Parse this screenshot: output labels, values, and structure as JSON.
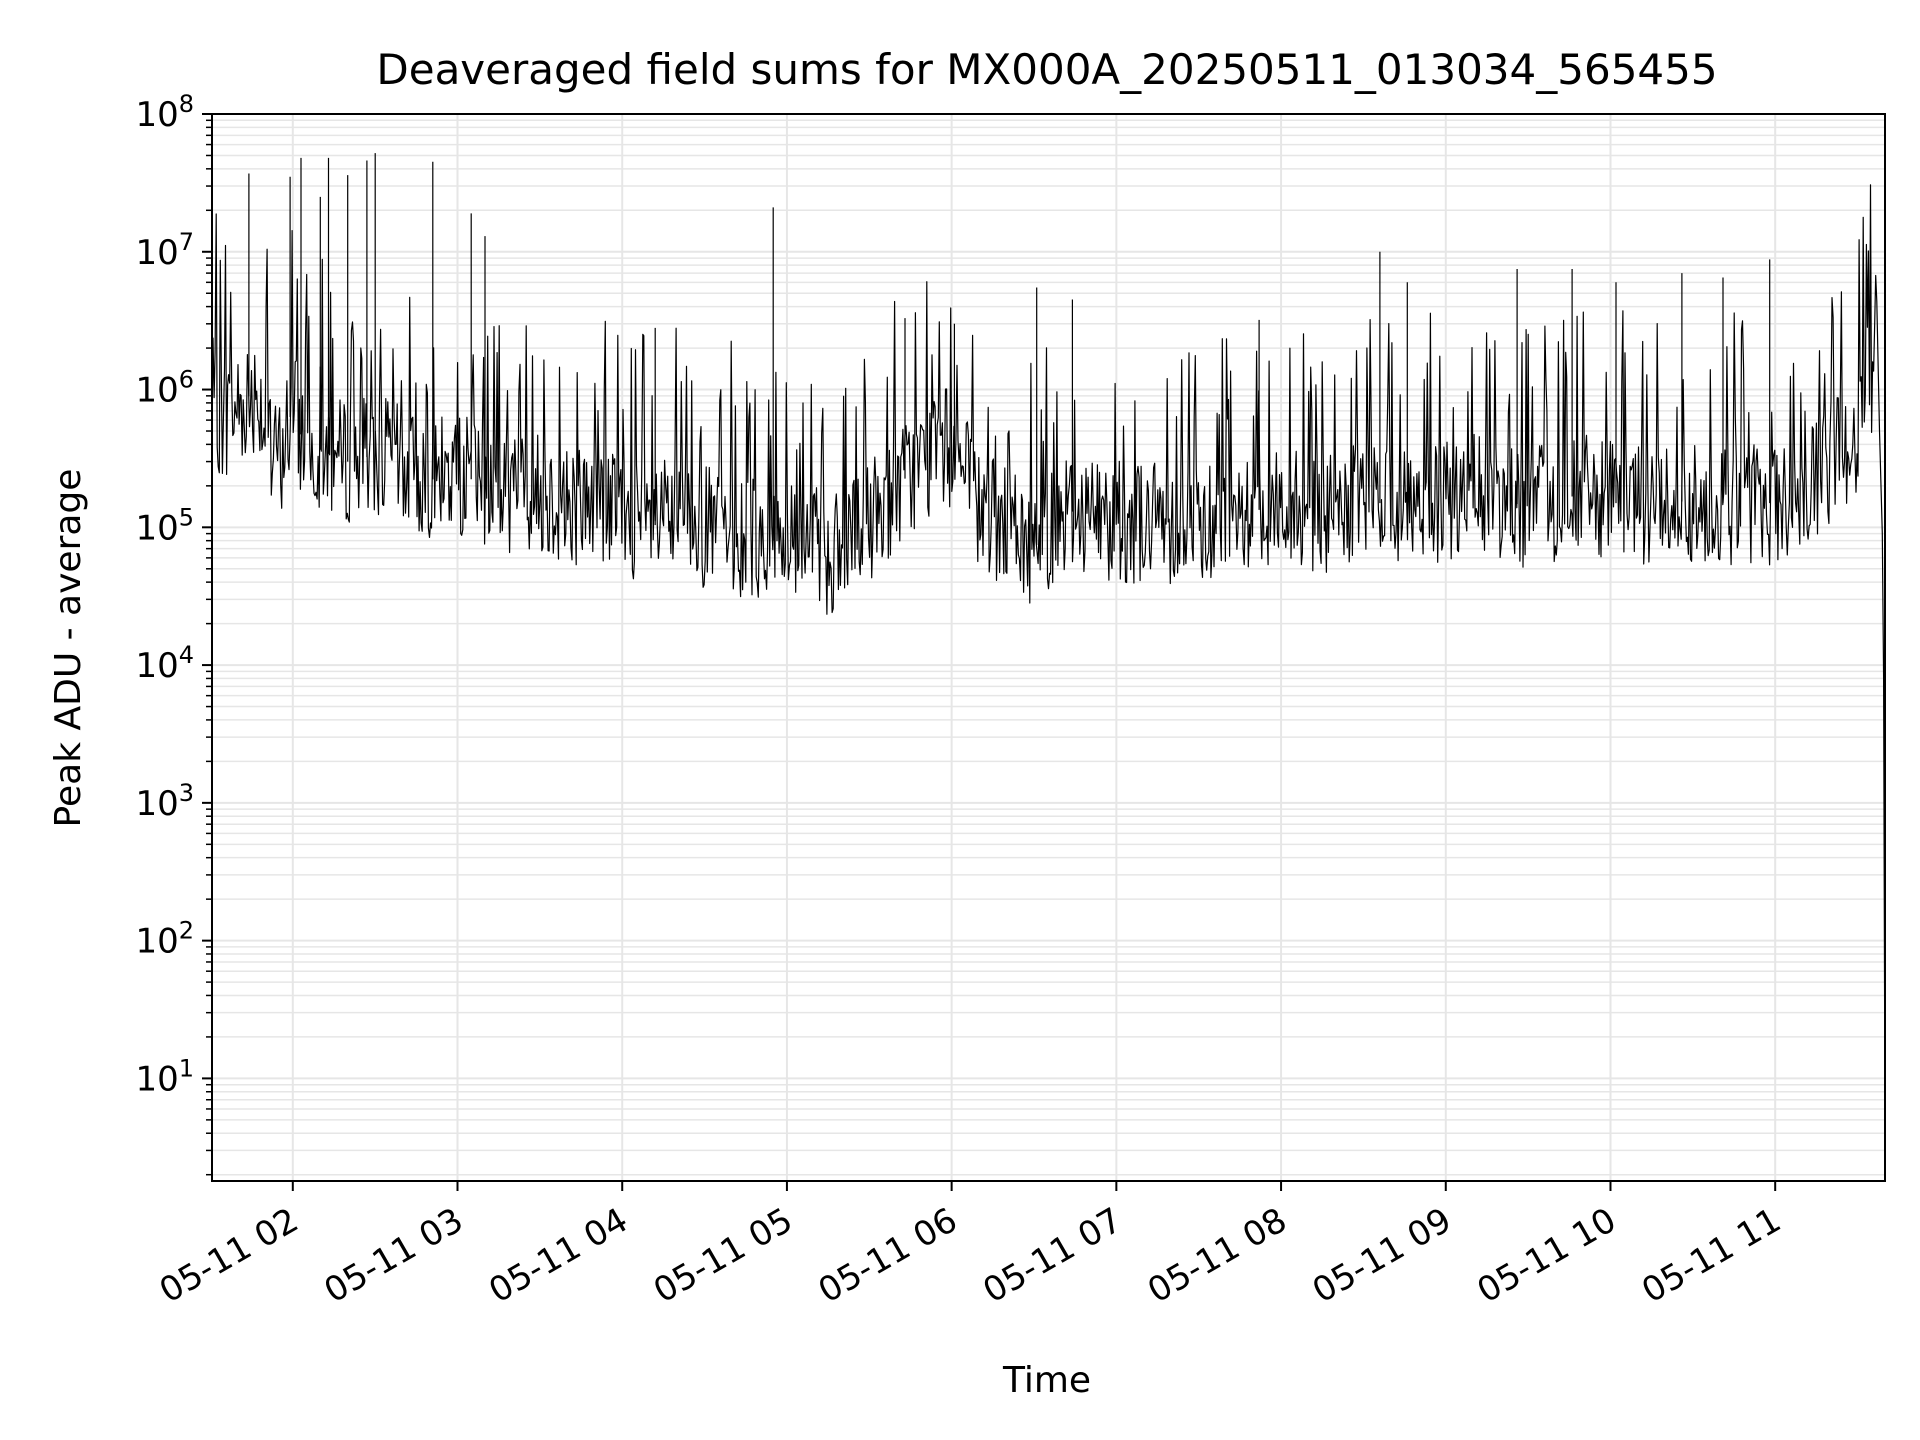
{
  "chart_data": {
    "type": "line",
    "title": "Deaveraged field sums for MX000A_20250511_013034_565455",
    "xlabel": "Time",
    "ylabel": "Peak ADU - average",
    "xscale": "time",
    "yscale": "log",
    "xlim": [
      "2025-05-11 01:30:34",
      "2025-05-11 11:40:00"
    ],
    "ylim": [
      1.8,
      100000000
    ],
    "grid": true,
    "legend": "none",
    "x_tick_labels": [
      "05-11 02",
      "05-11 03",
      "05-11 04",
      "05-11 05",
      "05-11 06",
      "05-11 07",
      "05-11 08",
      "05-11 09",
      "05-11 10",
      "05-11 11"
    ],
    "y_tick_labels": [
      {
        "base": "10",
        "exp": "1",
        "value": 10
      },
      {
        "base": "10",
        "exp": "2",
        "value": 100
      },
      {
        "base": "10",
        "exp": "3",
        "value": 1000
      },
      {
        "base": "10",
        "exp": "4",
        "value": 10000
      },
      {
        "base": "10",
        "exp": "5",
        "value": 100000
      },
      {
        "base": "10",
        "exp": "6",
        "value": 1000000
      },
      {
        "base": "10",
        "exp": "7",
        "value": 10000000
      },
      {
        "base": "10",
        "exp": "8",
        "value": 100000000
      }
    ],
    "line_color": "#000000",
    "grid_color": "#e6e6e6",
    "series": [
      {
        "x": [
          "2025-05-11 01:30:34",
          "2025-05-11 01:34:00",
          "2025-05-11 01:38:00",
          "2025-05-11 01:42:00",
          "2025-05-11 01:46:00",
          "2025-05-11 01:48:00",
          "2025-05-11 01:50:00",
          "2025-05-11 01:52:00",
          "2025-05-11 01:56:00",
          "2025-05-11 01:58:00",
          "2025-05-11 02:00:00",
          "2025-05-11 02:02:00",
          "2025-05-11 02:06:00",
          "2025-05-11 02:12:00",
          "2025-05-11 02:18:00",
          "2025-05-11 02:24:00",
          "2025-05-11 02:30:00",
          "2025-05-11 02:36:00",
          "2025-05-11 02:42:00",
          "2025-05-11 02:50:00",
          "2025-05-11 03:00:00",
          "2025-05-11 03:10:00",
          "2025-05-11 03:20:00",
          "2025-05-11 03:30:00",
          "2025-05-11 03:40:00",
          "2025-05-11 03:50:00",
          "2025-05-11 04:00:00",
          "2025-05-11 04:10:00",
          "2025-05-11 04:20:00",
          "2025-05-11 04:30:00",
          "2025-05-11 04:40:00",
          "2025-05-11 04:50:00",
          "2025-05-11 05:00:00",
          "2025-05-11 05:10:00",
          "2025-05-11 05:20:00",
          "2025-05-11 05:30:00",
          "2025-05-11 05:40:00",
          "2025-05-11 05:50:00",
          "2025-05-11 06:00:00",
          "2025-05-11 06:10:00",
          "2025-05-11 06:20:00",
          "2025-05-11 06:30:00",
          "2025-05-11 06:40:00",
          "2025-05-11 06:50:00",
          "2025-05-11 07:00:00",
          "2025-05-11 07:10:00",
          "2025-05-11 07:20:00",
          "2025-05-11 07:30:00",
          "2025-05-11 07:40:00",
          "2025-05-11 07:50:00",
          "2025-05-11 08:00:00",
          "2025-05-11 08:10:00",
          "2025-05-11 08:20:00",
          "2025-05-11 08:30:00",
          "2025-05-11 08:40:00",
          "2025-05-11 08:50:00",
          "2025-05-11 09:00:00",
          "2025-05-11 09:10:00",
          "2025-05-11 09:20:00",
          "2025-05-11 09:30:00",
          "2025-05-11 09:40:00",
          "2025-05-11 09:50:00",
          "2025-05-11 10:00:00",
          "2025-05-11 10:10:00",
          "2025-05-11 10:20:00",
          "2025-05-11 10:30:00",
          "2025-05-11 10:40:00",
          "2025-05-11 10:50:00",
          "2025-05-11 11:00:00",
          "2025-05-11 11:10:00",
          "2025-05-11 11:20:00",
          "2025-05-11 11:26:00",
          "2025-05-11 11:30:00",
          "2025-05-11 11:32:00",
          "2025-05-11 11:34:00",
          "2025-05-11 11:36:00",
          "2025-05-11 11:38:00",
          "2025-05-11 11:39:00",
          "2025-05-11 11:39:30",
          "2025-05-11 11:40:00"
        ],
        "y": [
          900000,
          600000,
          700000,
          800000,
          1000000,
          900000,
          500000,
          300000,
          350000,
          500000,
          800000,
          500000,
          400000,
          350000,
          300000,
          300000,
          350000,
          300000,
          250000,
          220000,
          250000,
          200000,
          180000,
          180000,
          150000,
          150000,
          130000,
          100000,
          120000,
          100000,
          90000,
          80000,
          80000,
          70000,
          60000,
          110000,
          200000,
          300000,
          400000,
          130000,
          100000,
          70000,
          130000,
          130000,
          110000,
          110000,
          110000,
          110000,
          120000,
          130000,
          150000,
          130000,
          120000,
          150000,
          150000,
          140000,
          150000,
          170000,
          160000,
          140000,
          150000,
          180000,
          150000,
          150000,
          160000,
          150000,
          150000,
          150000,
          150000,
          150000,
          300000,
          400000,
          500000,
          800000,
          1500000,
          1200000,
          500000,
          90000,
          8000,
          4
        ]
      }
    ],
    "spikes": {
      "x": [
        "2025-05-11 01:44:00",
        "2025-05-11 01:59:00",
        "2025-05-11 02:03:00",
        "2025-05-11 02:10:00",
        "2025-05-11 02:13:00",
        "2025-05-11 02:20:00",
        "2025-05-11 02:27:00",
        "2025-05-11 02:30:00",
        "2025-05-11 02:51:00",
        "2025-05-11 03:05:00",
        "2025-05-11 03:10:00",
        "2025-05-11 04:12:00",
        "2025-05-11 04:55:00",
        "2025-05-11 05:43:00",
        "2025-05-11 06:01:00",
        "2025-05-11 06:31:00",
        "2025-05-11 06:44:00",
        "2025-05-11 07:52:00",
        "2025-05-11 08:36:00",
        "2025-05-11 08:46:00",
        "2025-05-11 09:26:00",
        "2025-05-11 09:46:00",
        "2025-05-11 10:02:00",
        "2025-05-11 10:26:00",
        "2025-05-11 10:41:00",
        "2025-05-11 10:58:00"
      ],
      "y": [
        37000000,
        35000000,
        48000000,
        25000000,
        48000000,
        36000000,
        46000000,
        52000000,
        45000000,
        19000000,
        13000000,
        2800000,
        21000000,
        3300000,
        3000000,
        5500000,
        4500000,
        3200000,
        10000000,
        6000000,
        7500000,
        7500000,
        6000000,
        7000000,
        6500000,
        8800000
      ]
    }
  }
}
